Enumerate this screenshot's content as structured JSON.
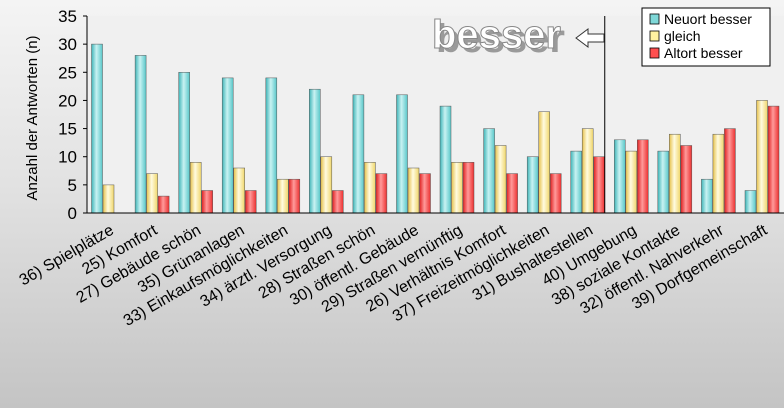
{
  "chart_data": {
    "type": "bar",
    "ylabel": "Anzahl der Antworten (n)",
    "ylim": [
      0,
      35
    ],
    "yticks": [
      0,
      5,
      10,
      15,
      20,
      25,
      30,
      35
    ],
    "categories": [
      "36) Spielplätze",
      "25) Komfort",
      "27) Gebäude schön",
      "35) Grünanlagen",
      "33) Einkaufsmöglichkeiten",
      "34) ärztl. Versorgung",
      "28) Straßen schön",
      "30) öffentl. Gebäude",
      "29) Straßen vernünftig",
      "26) Verhältnis Komfort",
      "37) Freizeitmöglichkeiten",
      "31) Bushaltestellen",
      "40) Umgebung",
      "38) soziale Kontakte",
      "32) öffentl. Nahverkehr",
      "39) Dorfgemeinschaft"
    ],
    "series": [
      {
        "name": "Neuort besser",
        "color": "#7fd8d8",
        "values": [
          30,
          28,
          25,
          24,
          24,
          22,
          21,
          21,
          19,
          15,
          10,
          11,
          13,
          11,
          6,
          4
        ]
      },
      {
        "name": "gleich",
        "color": "#fff2a0",
        "values": [
          5,
          7,
          9,
          8,
          6,
          10,
          9,
          8,
          9,
          12,
          18,
          15,
          11,
          14,
          14,
          20
        ]
      },
      {
        "name": "Altort besser",
        "color": "#ff5050",
        "values": [
          0,
          3,
          4,
          4,
          6,
          4,
          7,
          7,
          9,
          7,
          7,
          10,
          13,
          12,
          15,
          19
        ]
      }
    ],
    "annotation": "besser",
    "divider_after_index": 11,
    "legend_position": "top-right",
    "grid": false
  }
}
